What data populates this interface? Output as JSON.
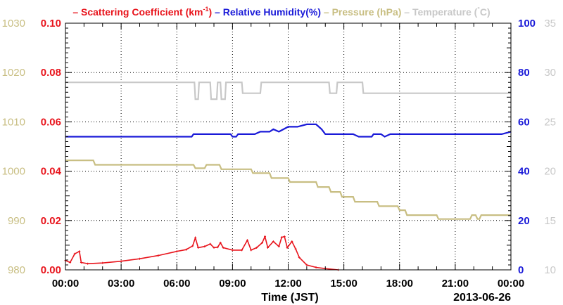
{
  "chart_data": {
    "type": "line",
    "legend": {
      "placement": "top",
      "items": [
        {
          "prefix": "–",
          "text": "Scattering Coefficient (km",
          "sup": "-1",
          "suffix": ")",
          "color": "#e8141c"
        },
        {
          "prefix": "–",
          "text": "Relative Humidity(%)",
          "color": "#1a1ad8"
        },
        {
          "prefix": "–",
          "text": "Pressure (hPa)",
          "color": "#c8be82"
        },
        {
          "prefix": "–",
          "text": "Temperature (",
          "sup": "°",
          "suffix": "C)",
          "color": "#c8c8c8"
        }
      ]
    },
    "xlabel": "Time (JST)",
    "date_label": "2013-06-26",
    "x_ticks": [
      "00:00",
      "03:00",
      "06:00",
      "09:00",
      "12:00",
      "15:00",
      "18:00",
      "21:00",
      "00:00"
    ],
    "xlim_hours": [
      0,
      24
    ],
    "grid": true,
    "axes": {
      "scattering": {
        "side": "left-inner",
        "color": "#e8141c",
        "ylim": [
          0,
          0.1
        ],
        "ticks": [
          "0.00",
          "0.02",
          "0.04",
          "0.06",
          "0.08",
          "0.10"
        ]
      },
      "pressure": {
        "side": "left-outer",
        "color": "#c8be82",
        "ylim": [
          980,
          1030
        ],
        "ticks": [
          "980",
          "990",
          "1000",
          "1010",
          "1020",
          "1030"
        ]
      },
      "humidity": {
        "side": "right-inner",
        "color": "#1a1ad8",
        "ylim": [
          0,
          100
        ],
        "ticks": [
          "0",
          "20",
          "40",
          "60",
          "80",
          "100"
        ]
      },
      "temperature": {
        "side": "right-outer",
        "color": "#c8c8c8",
        "ylim": [
          10,
          35
        ],
        "ticks": [
          "10",
          "15",
          "20",
          "25",
          "30",
          "35"
        ]
      }
    },
    "series": [
      {
        "name": "Scattering Coefficient",
        "axis": "scattering",
        "color": "#e8141c",
        "marker": true,
        "points": [
          [
            0.0,
            0.0038
          ],
          [
            0.25,
            0.003
          ],
          [
            0.5,
            0.0065
          ],
          [
            0.75,
            0.0075
          ],
          [
            0.85,
            0.003
          ],
          [
            1.2,
            0.0025
          ],
          [
            2.0,
            0.0028
          ],
          [
            3.0,
            0.0035
          ],
          [
            4.0,
            0.0045
          ],
          [
            5.0,
            0.0058
          ],
          [
            6.0,
            0.0075
          ],
          [
            6.5,
            0.0082
          ],
          [
            6.85,
            0.0097
          ],
          [
            7.0,
            0.013
          ],
          [
            7.15,
            0.009
          ],
          [
            7.5,
            0.0095
          ],
          [
            7.8,
            0.0105
          ],
          [
            8.0,
            0.009
          ],
          [
            8.2,
            0.0092
          ],
          [
            8.35,
            0.011
          ],
          [
            8.5,
            0.009
          ],
          [
            9.0,
            0.008
          ],
          [
            9.5,
            0.008
          ],
          [
            9.8,
            0.012
          ],
          [
            10.0,
            0.008
          ],
          [
            10.3,
            0.009
          ],
          [
            10.6,
            0.011
          ],
          [
            10.75,
            0.0135
          ],
          [
            10.9,
            0.009
          ],
          [
            11.2,
            0.0115
          ],
          [
            11.5,
            0.0095
          ],
          [
            11.65,
            0.0132
          ],
          [
            11.8,
            0.0135
          ],
          [
            11.95,
            0.009
          ],
          [
            12.2,
            0.0115
          ],
          [
            12.4,
            0.0085
          ],
          [
            12.6,
            0.005
          ],
          [
            13.0,
            0.002
          ],
          [
            13.5,
            0.001
          ],
          [
            14.0,
            0.0005
          ],
          [
            14.7,
            0.0
          ]
        ]
      },
      {
        "name": "Relative Humidity",
        "axis": "humidity",
        "color": "#1a1ad8",
        "marker": false,
        "points": [
          [
            0.0,
            54
          ],
          [
            6.8,
            54
          ],
          [
            6.9,
            55
          ],
          [
            8.9,
            55
          ],
          [
            9.0,
            54
          ],
          [
            9.2,
            54
          ],
          [
            9.3,
            55
          ],
          [
            10.2,
            55
          ],
          [
            10.5,
            56
          ],
          [
            11.0,
            56
          ],
          [
            11.2,
            57
          ],
          [
            11.5,
            56
          ],
          [
            12.0,
            58
          ],
          [
            12.5,
            58
          ],
          [
            13.0,
            59
          ],
          [
            13.5,
            59
          ],
          [
            13.8,
            57
          ],
          [
            14.0,
            55
          ],
          [
            15.5,
            55
          ],
          [
            15.8,
            54
          ],
          [
            16.5,
            54
          ],
          [
            16.6,
            55
          ],
          [
            17.0,
            55
          ],
          [
            17.2,
            54
          ],
          [
            17.5,
            55
          ],
          [
            23.5,
            55
          ],
          [
            24.0,
            56
          ]
        ]
      },
      {
        "name": "Pressure",
        "axis": "pressure",
        "color": "#c8be82",
        "marker": false,
        "points": [
          [
            0.0,
            1002.2
          ],
          [
            1.5,
            1002.2
          ],
          [
            1.6,
            1001.3
          ],
          [
            6.9,
            1001.3
          ],
          [
            7.0,
            1000.6
          ],
          [
            7.5,
            1000.6
          ],
          [
            7.6,
            1001.3
          ],
          [
            8.3,
            1001.3
          ],
          [
            8.4,
            1000.4
          ],
          [
            10.0,
            1000.4
          ],
          [
            10.1,
            999.6
          ],
          [
            11.0,
            999.6
          ],
          [
            11.1,
            998.6
          ],
          [
            12.0,
            998.6
          ],
          [
            12.1,
            997.8
          ],
          [
            13.5,
            997.8
          ],
          [
            13.6,
            996.8
          ],
          [
            14.2,
            996.8
          ],
          [
            14.3,
            995.8
          ],
          [
            14.8,
            995.8
          ],
          [
            14.9,
            994.8
          ],
          [
            15.5,
            994.8
          ],
          [
            15.6,
            993.8
          ],
          [
            16.8,
            993.8
          ],
          [
            16.9,
            992.9
          ],
          [
            17.9,
            992.9
          ],
          [
            18.0,
            992.1
          ],
          [
            18.3,
            992.1
          ],
          [
            18.4,
            991.1
          ],
          [
            20.0,
            991.1
          ],
          [
            20.1,
            990.3
          ],
          [
            21.8,
            990.3
          ],
          [
            21.9,
            991.1
          ],
          [
            22.1,
            991.1
          ],
          [
            22.2,
            990.3
          ],
          [
            22.3,
            990.3
          ],
          [
            22.4,
            991.1
          ],
          [
            24.0,
            991.1
          ]
        ]
      },
      {
        "name": "Temperature",
        "axis": "temperature",
        "color": "#c8c8c8",
        "marker": false,
        "points": [
          [
            0.0,
            29
          ],
          [
            6.95,
            29
          ],
          [
            7.0,
            27.3
          ],
          [
            7.15,
            27.3
          ],
          [
            7.2,
            29
          ],
          [
            7.8,
            29
          ],
          [
            7.85,
            27.3
          ],
          [
            8.15,
            27.3
          ],
          [
            8.2,
            29
          ],
          [
            8.35,
            29
          ],
          [
            8.4,
            27.3
          ],
          [
            8.6,
            27.3
          ],
          [
            8.65,
            29
          ],
          [
            9.5,
            29
          ],
          [
            9.55,
            27.9
          ],
          [
            10.5,
            27.9
          ],
          [
            10.55,
            29
          ],
          [
            14.2,
            29
          ],
          [
            14.25,
            27.9
          ],
          [
            14.6,
            27.9
          ],
          [
            14.65,
            29
          ],
          [
            16.0,
            29
          ],
          [
            16.05,
            27.9
          ],
          [
            24.0,
            27.9
          ]
        ]
      }
    ]
  }
}
